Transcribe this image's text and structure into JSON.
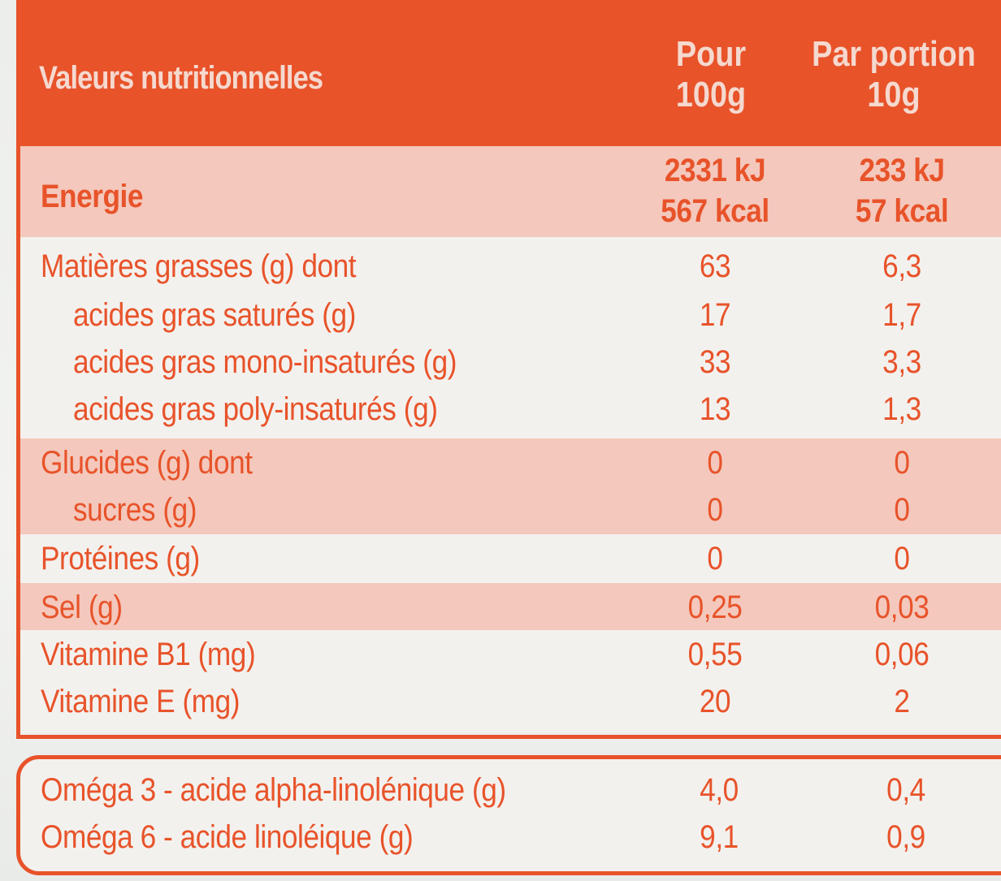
{
  "header": {
    "title": "Valeurs nutritionnelles",
    "col1_line1": "Pour",
    "col1_line2": "100g",
    "col2_line1": "Par portion",
    "col2_line2": "10g"
  },
  "energy": {
    "label": "Energie",
    "per100_kj": "2331 kJ",
    "per100_kcal": "567 kcal",
    "portion_kj": "233 kJ",
    "portion_kcal": "57 kcal"
  },
  "rows": [
    {
      "label": "Matières grasses (g) dont",
      "per100": "63",
      "portion": "6,3"
    },
    {
      "label": "acides gras saturés (g)",
      "per100": "17",
      "portion": "1,7"
    },
    {
      "label": "acides gras mono-insaturés (g)",
      "per100": "33",
      "portion": "3,3"
    },
    {
      "label": "acides gras poly-insaturés (g)",
      "per100": "13",
      "portion": "1,3"
    },
    {
      "label": "Glucides (g) dont",
      "per100": "0",
      "portion": "0"
    },
    {
      "label": "sucres (g)",
      "per100": "0",
      "portion": "0"
    },
    {
      "label": "Protéines (g)",
      "per100": "0",
      "portion": "0"
    },
    {
      "label": "Sel (g)",
      "per100": "0,25",
      "portion": "0,03"
    },
    {
      "label": "Vitamine B1 (mg)",
      "per100": "0,55",
      "portion": "0,06"
    },
    {
      "label": "Vitamine E (mg)",
      "per100": "20",
      "portion": "2"
    }
  ],
  "omega": [
    {
      "label": "Oméga 3 - acide alpha-linolénique (g)",
      "per100": "4,0",
      "portion": "0,4"
    },
    {
      "label": "Oméga 6 - acide linoléique (g)",
      "per100": "9,1",
      "portion": "0,9"
    }
  ],
  "colors": {
    "accent": "#e8532a",
    "shade": "#f4c8bc",
    "header_text": "#f5d9cf"
  }
}
